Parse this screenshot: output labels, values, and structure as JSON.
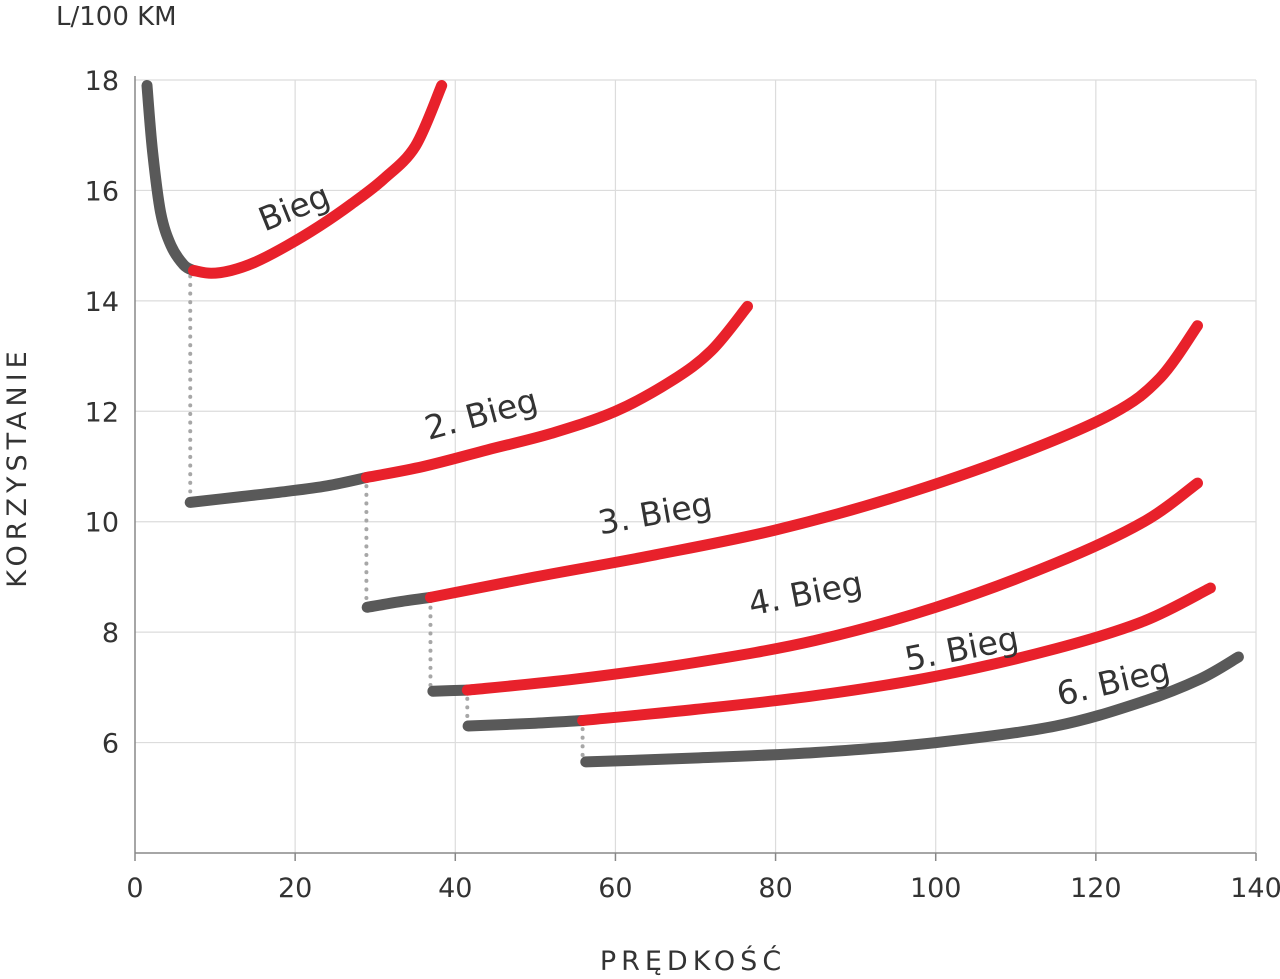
{
  "colors": {
    "efficient": "#e8212b",
    "inefficient": "#595959",
    "shift": "#a7a7a7",
    "grid": "#dcdcdc",
    "text": "#333333"
  },
  "chart_data": {
    "type": "line",
    "xlabel": "PRĘDKOŚĆ",
    "ylabel": "KORZYSTANIE",
    "yunit": "L/100 KM",
    "xlim": [
      0,
      140
    ],
    "ylim": [
      4,
      18
    ],
    "x_ticks": [
      0,
      20,
      40,
      60,
      80,
      100,
      120,
      140
    ],
    "y_ticks": [
      6,
      8,
      10,
      12,
      14,
      16,
      18
    ],
    "grid": true,
    "series": [
      {
        "name": "Bieg",
        "segments": [
          {
            "style": "inefficient",
            "points": [
              [
                1.5,
                17.9
              ],
              [
                2.2,
                16.7
              ],
              [
                3.2,
                15.6
              ],
              [
                4.5,
                15.0
              ],
              [
                6.1,
                14.65
              ],
              [
                7.3,
                14.55
              ]
            ]
          },
          {
            "style": "efficient",
            "points": [
              [
                7.3,
                14.55
              ],
              [
                9.5,
                14.5
              ],
              [
                12,
                14.55
              ],
              [
                15,
                14.7
              ],
              [
                19,
                15.0
              ],
              [
                23,
                15.35
              ],
              [
                27,
                15.75
              ],
              [
                31,
                16.2
              ],
              [
                35,
                16.8
              ],
              [
                38.3,
                17.9
              ]
            ]
          }
        ]
      },
      {
        "name": "2. Bieg",
        "segments": [
          {
            "style": "inefficient",
            "points": [
              [
                6.9,
                10.35
              ],
              [
                13,
                10.45
              ],
              [
                19,
                10.55
              ],
              [
                24,
                10.65
              ],
              [
                28.9,
                10.8
              ]
            ]
          },
          {
            "style": "efficient",
            "points": [
              [
                28.9,
                10.8
              ],
              [
                36,
                11.0
              ],
              [
                44,
                11.3
              ],
              [
                52,
                11.6
              ],
              [
                60,
                12.0
              ],
              [
                67,
                12.55
              ],
              [
                72,
                13.1
              ],
              [
                76.5,
                13.9
              ]
            ]
          }
        ]
      },
      {
        "name": "3. Bieg",
        "segments": [
          {
            "style": "inefficient",
            "points": [
              [
                29,
                8.45
              ],
              [
                33,
                8.55
              ],
              [
                36.9,
                8.63
              ]
            ]
          },
          {
            "style": "efficient",
            "points": [
              [
                36.9,
                8.63
              ],
              [
                50,
                9.0
              ],
              [
                65,
                9.4
              ],
              [
                80,
                9.85
              ],
              [
                95,
                10.45
              ],
              [
                110,
                11.2
              ],
              [
                122,
                11.95
              ],
              [
                128,
                12.6
              ],
              [
                132.7,
                13.55
              ]
            ]
          }
        ]
      },
      {
        "name": "4. Bieg",
        "segments": [
          {
            "style": "inefficient",
            "points": [
              [
                37.2,
                6.93
              ],
              [
                41.5,
                6.95
              ]
            ]
          },
          {
            "style": "efficient",
            "points": [
              [
                41.5,
                6.95
              ],
              [
                55,
                7.15
              ],
              [
                70,
                7.45
              ],
              [
                85,
                7.85
              ],
              [
                100,
                8.45
              ],
              [
                115,
                9.25
              ],
              [
                126,
                10.0
              ],
              [
                132.7,
                10.7
              ]
            ]
          }
        ]
      },
      {
        "name": "5. Bieg",
        "segments": [
          {
            "style": "inefficient",
            "points": [
              [
                41.6,
                6.3
              ],
              [
                50,
                6.35
              ],
              [
                55.9,
                6.4
              ]
            ]
          },
          {
            "style": "efficient",
            "points": [
              [
                55.9,
                6.4
              ],
              [
                70,
                6.6
              ],
              [
                85,
                6.85
              ],
              [
                100,
                7.2
              ],
              [
                115,
                7.7
              ],
              [
                126,
                8.2
              ],
              [
                134.3,
                8.8
              ]
            ]
          }
        ]
      },
      {
        "name": "6. Bieg",
        "segments": [
          {
            "style": "inefficient",
            "points": [
              [
                56.3,
                5.65
              ],
              [
                70,
                5.72
              ],
              [
                85,
                5.82
              ],
              [
                100,
                6.0
              ],
              [
                115,
                6.3
              ],
              [
                126,
                6.75
              ],
              [
                133,
                7.15
              ],
              [
                137.8,
                7.55
              ]
            ]
          }
        ]
      }
    ],
    "shift_lines": [
      {
        "from": [
          6.9,
          14.6
        ],
        "to": [
          6.9,
          10.4
        ]
      },
      {
        "from": [
          28.9,
          10.8
        ],
        "to": [
          28.9,
          8.5
        ]
      },
      {
        "from": [
          36.9,
          8.6
        ],
        "to": [
          36.9,
          6.95
        ]
      },
      {
        "from": [
          41.5,
          6.95
        ],
        "to": [
          41.5,
          6.3
        ]
      },
      {
        "from": [
          55.9,
          6.4
        ],
        "to": [
          55.9,
          5.65
        ]
      }
    ],
    "labels": [
      {
        "text": "Bieg",
        "x": 20.4,
        "y": 15.5,
        "angle": -22
      },
      {
        "text": "2. Bieg",
        "x": 43.6,
        "y": 11.75,
        "angle": -15
      },
      {
        "text": "3. Bieg",
        "x": 65.2,
        "y": 9.95,
        "angle": -10
      },
      {
        "text": "4. Bieg",
        "x": 84.0,
        "y": 8.5,
        "angle": -11
      },
      {
        "text": "5. Bieg",
        "x": 103.5,
        "y": 7.5,
        "angle": -11
      },
      {
        "text": "6. Bieg",
        "x": 122.5,
        "y": 6.9,
        "angle": -13
      }
    ]
  }
}
